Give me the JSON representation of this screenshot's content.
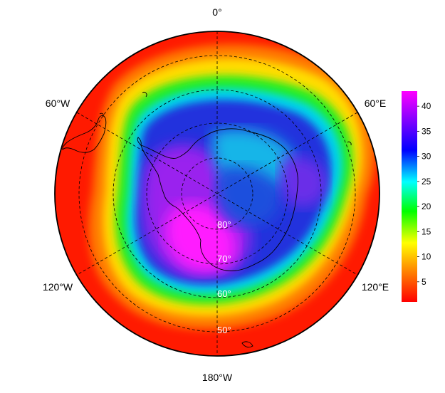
{
  "map": {
    "projection": "south-polar-stereographic",
    "colormap": "rainbow",
    "longitude_labels": {
      "top": "0°",
      "upper_left": "60°W",
      "upper_right": "60°E",
      "lower_left": "120°W",
      "lower_right": "120°E",
      "bottom": "180°W"
    },
    "latitude_labels": [
      "80°",
      "70°",
      "60°",
      "50°"
    ],
    "latitude_circles": [
      80,
      70,
      60,
      50
    ]
  },
  "colorbar": {
    "min": 1,
    "max": 43,
    "ticks": [
      "5",
      "10",
      "15",
      "20",
      "25",
      "30",
      "35",
      "40"
    ],
    "colors": [
      "#ff0000",
      "#ff7f00",
      "#ffff00",
      "#00ff00",
      "#00ffff",
      "#0000ff",
      "#8000ff",
      "#ff00ff"
    ]
  }
}
